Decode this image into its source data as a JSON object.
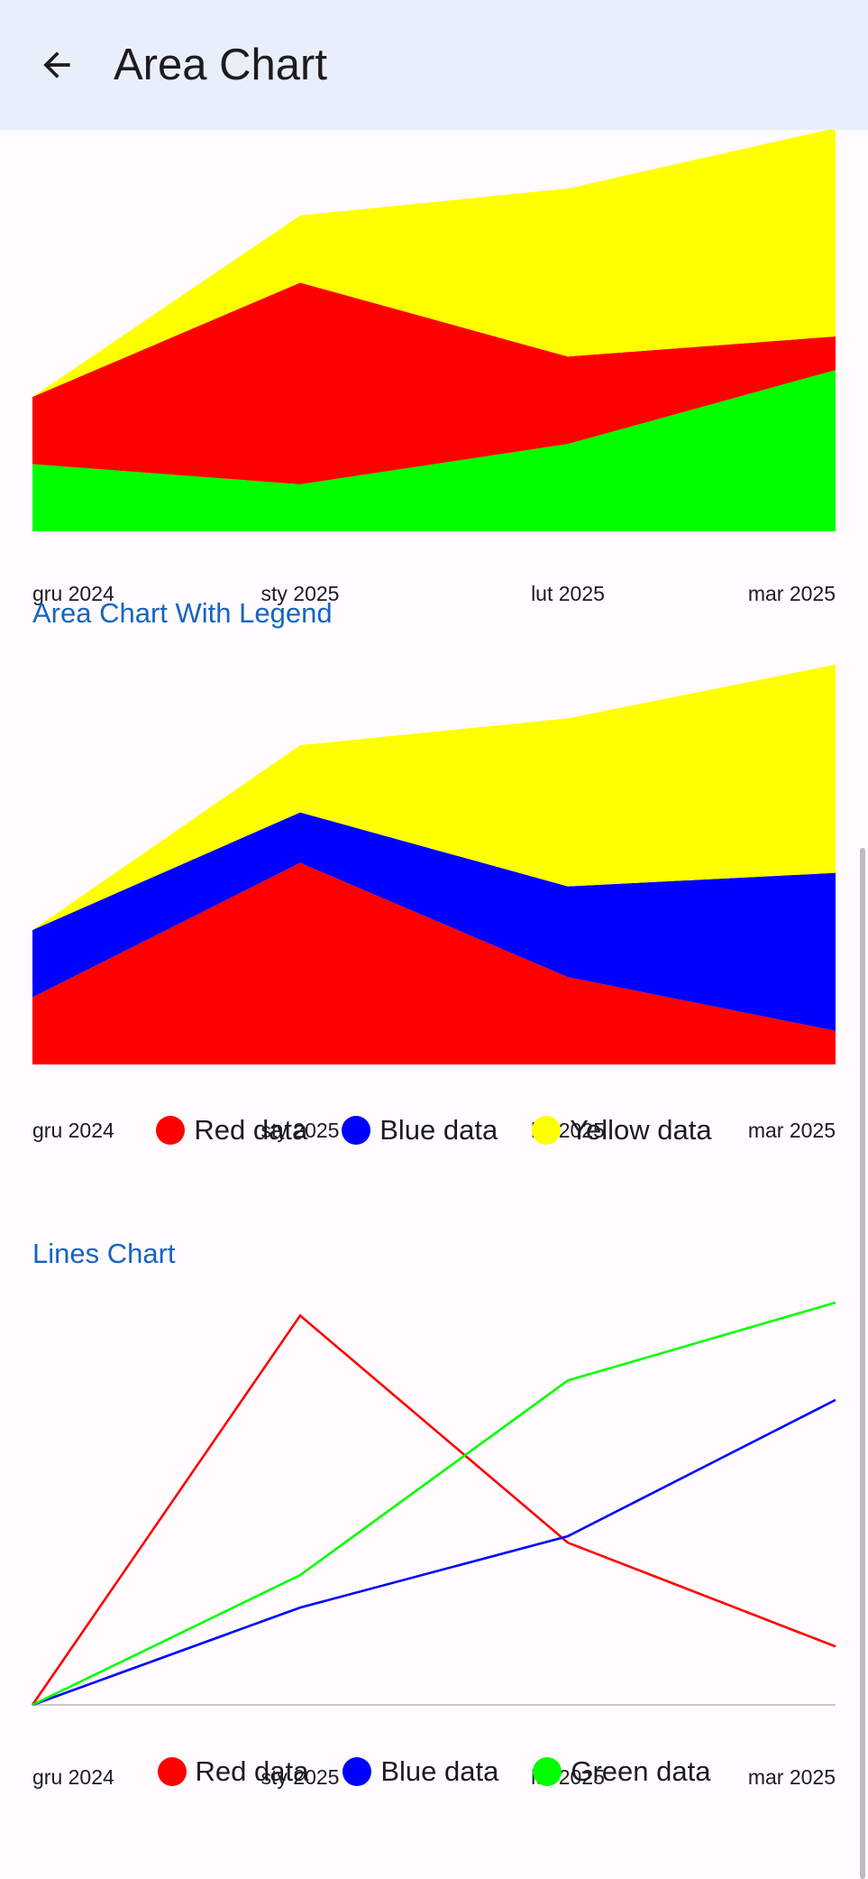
{
  "app_bar": {
    "title": "Area Chart",
    "back_icon": "arrow-back-icon"
  },
  "colors": {
    "red": "#ff0000",
    "blue": "#0000ff",
    "yellow": "#ffff00",
    "green": "#00ff00",
    "title": "#1565c0"
  },
  "sections": {
    "area_chart_with_legend": {
      "title": "Area Chart With Legend"
    },
    "lines_chart": {
      "title": "Lines Chart"
    }
  },
  "chart_data": [
    {
      "type": "area",
      "stacked": true,
      "categories": [
        "gru 2024",
        "sty 2025",
        "lut 2025",
        "mar 2025"
      ],
      "series": [
        {
          "color": "#00ff00",
          "values": [
            10,
            7,
            13,
            24
          ]
        },
        {
          "color": "#ff0000",
          "values": [
            10,
            30,
            13,
            5
          ]
        },
        {
          "color": "#ffff00",
          "values": [
            0,
            10,
            25,
            31
          ]
        }
      ],
      "ylim": [
        0,
        60
      ],
      "grid": false,
      "legend": null
    },
    {
      "type": "area",
      "stacked": true,
      "title": "Area Chart With Legend",
      "categories": [
        "gru 2024",
        "sty 2025",
        "lut 2025",
        "mar 2025"
      ],
      "series": [
        {
          "name": "Red data",
          "color": "#ff0000",
          "values": [
            10,
            30,
            13,
            5
          ]
        },
        {
          "name": "Blue data",
          "color": "#0000ff",
          "values": [
            10,
            7.5,
            13.5,
            23.5
          ]
        },
        {
          "name": "Yellow data",
          "color": "#ffff00",
          "values": [
            0,
            10,
            25,
            31
          ]
        }
      ],
      "ylim": [
        0,
        60
      ],
      "grid": false,
      "legend": "bottom"
    },
    {
      "type": "line",
      "title": "Lines Chart",
      "categories": [
        "gru 2024",
        "sty 2025",
        "lut 2025",
        "mar 2025"
      ],
      "series": [
        {
          "name": "Red data",
          "color": "#ff0000",
          "values": [
            0,
            30,
            12.5,
            4.5
          ]
        },
        {
          "name": "Blue data",
          "color": "#0000ff",
          "values": [
            0,
            7.5,
            13,
            23.5
          ]
        },
        {
          "name": "Green data",
          "color": "#00ff00",
          "values": [
            0,
            10,
            25,
            31
          ]
        }
      ],
      "ylim": [
        0,
        31
      ],
      "grid": false,
      "legend": "bottom"
    }
  ]
}
